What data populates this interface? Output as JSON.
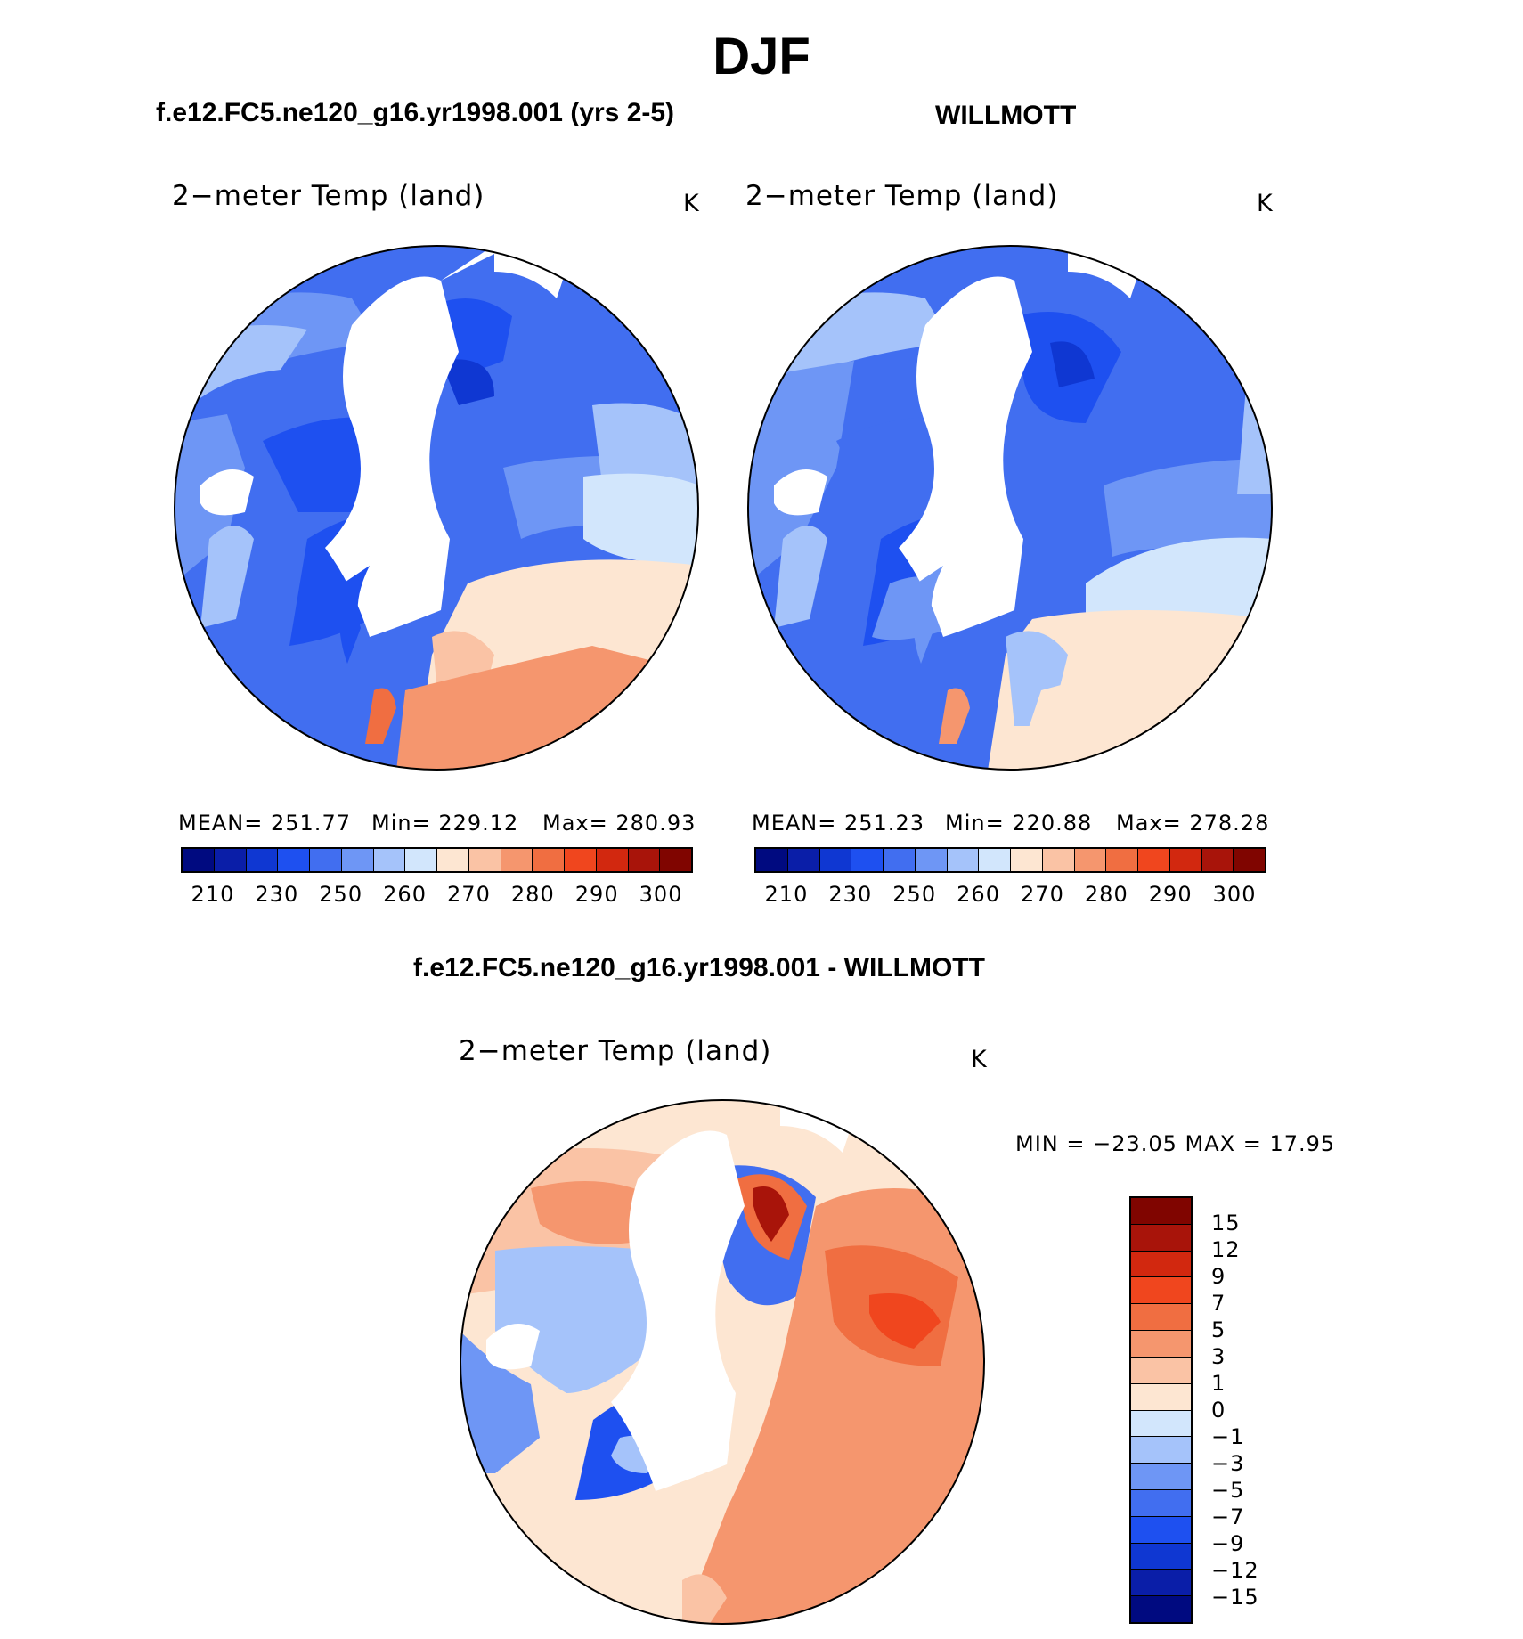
{
  "figure": {
    "title": "DJF",
    "panels": [
      {
        "title": "f.e12.FC5.ne120_g16.yr1998.001 (yrs 2-5)",
        "variable": "2−meter Temp (land)",
        "units": "K",
        "stats": {
          "mean_label": "MEAN=",
          "mean": "251.77",
          "min_label": "Min=",
          "min": "229.12",
          "max_label": "Max=",
          "max": "280.93"
        }
      },
      {
        "title": "WILLMOTT",
        "variable": "2−meter Temp (land)",
        "units": "K",
        "stats": {
          "mean_label": "MEAN=",
          "mean": "251.23",
          "min_label": "Min=",
          "min": "220.88",
          "max_label": "Max=",
          "max": "278.28"
        }
      },
      {
        "title": "f.e12.FC5.ne120_g16.yr1998.001 - WILLMOTT",
        "variable": "2−meter Temp (land)",
        "units": "K",
        "minmax_text": "MIN  =  −23.05  MAX  =    17.95"
      }
    ],
    "abs_colorbar": {
      "colors": [
        "#000a80",
        "#0a1ea8",
        "#0f37d2",
        "#1e50f0",
        "#416ef0",
        "#6e96f5",
        "#a5c3fa",
        "#d2e6fc",
        "#fde6d2",
        "#fac3a5",
        "#f5966e",
        "#f06e41",
        "#f0461e",
        "#d2280f",
        "#a8140a",
        "#800500"
      ],
      "tick_labels": [
        "210",
        "230",
        "250",
        "260",
        "270",
        "280",
        "290",
        "300"
      ]
    },
    "diff_colorbar": {
      "colors": [
        "#800500",
        "#a8140a",
        "#d2280f",
        "#f0461e",
        "#f06e41",
        "#f5966e",
        "#fac3a5",
        "#fde6d2",
        "#d2e6fc",
        "#a5c3fa",
        "#6e96f5",
        "#416ef0",
        "#1e50f0",
        "#0f37d2",
        "#0a1ea8",
        "#000a80"
      ],
      "tick_labels": [
        "15",
        "12",
        "9",
        "7",
        "5",
        "3",
        "1",
        "0",
        "−1",
        "−3",
        "−5",
        "−7",
        "−9",
        "−12",
        "−15"
      ]
    }
  }
}
